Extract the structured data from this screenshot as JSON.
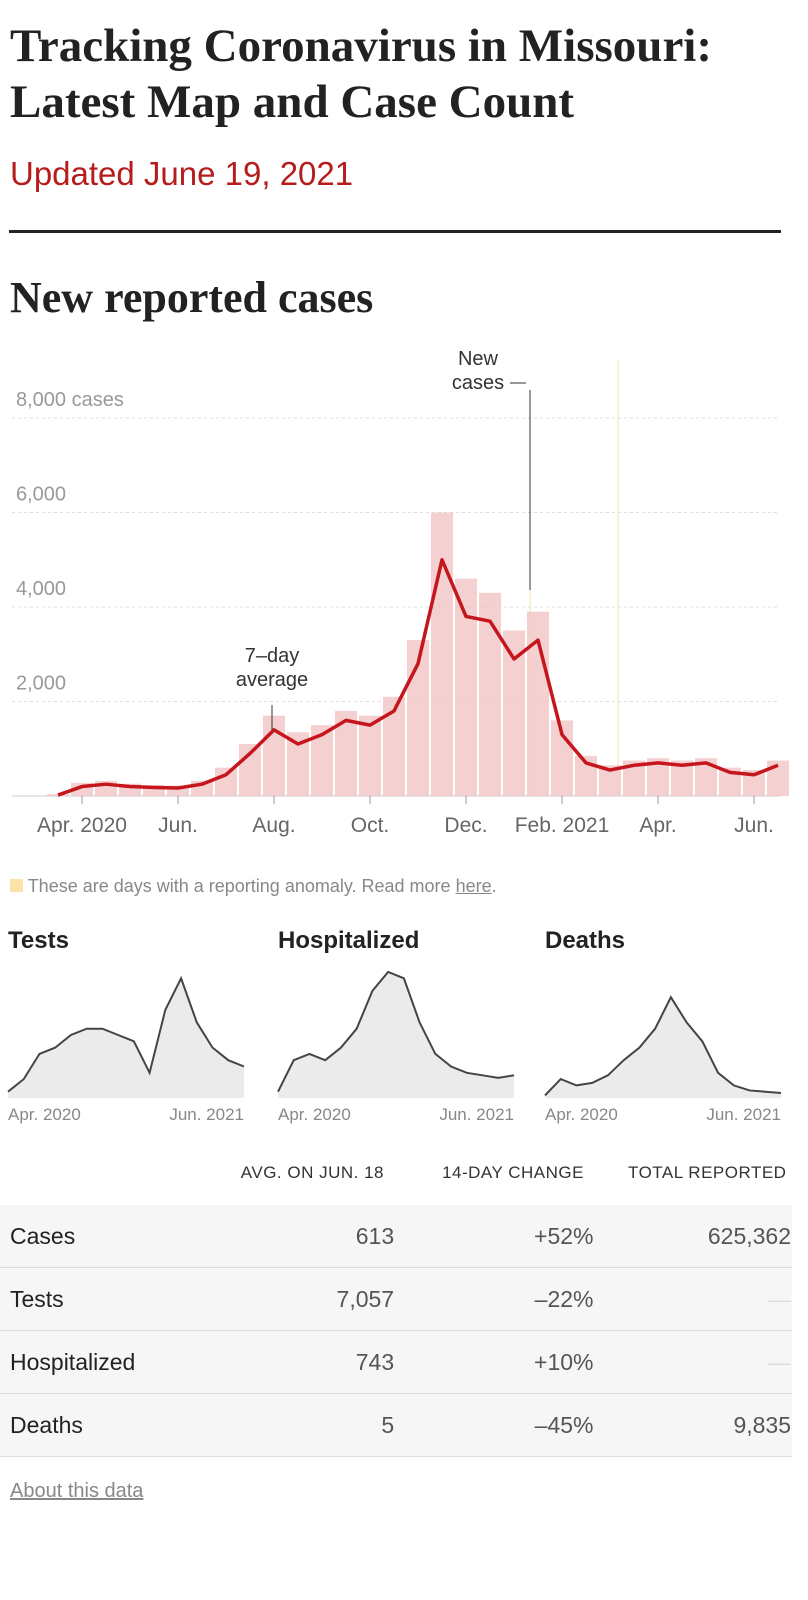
{
  "header": {
    "title_line1": "Tracking Coronavirus in Missouri:",
    "title_line2": "Latest Map and Case Count",
    "updated": "Updated June 19, 2021",
    "section": "New reported cases"
  },
  "chart_data": [
    {
      "type": "bar-line",
      "categories": [
        null,
        "Apr. 2020",
        null,
        null,
        null,
        "Jun.",
        null,
        null,
        null,
        "Aug.",
        null,
        null,
        null,
        "Oct.",
        null,
        null,
        null,
        "Dec.",
        null,
        null,
        null,
        "Feb. 2021",
        null,
        null,
        null,
        "Apr.",
        null,
        null,
        null,
        "Jun.",
        null
      ],
      "series": [
        {
          "name": "New cases",
          "mark": "bar",
          "color": "#f3c4c4",
          "values": [
            40,
            280,
            320,
            260,
            230,
            220,
            320,
            600,
            1100,
            1700,
            1350,
            1500,
            1800,
            1700,
            2100,
            3300,
            6000,
            4600,
            4300,
            3500,
            3900,
            1600,
            850,
            650,
            750,
            800,
            750,
            800,
            600,
            550,
            750
          ]
        },
        {
          "name": "7–day average",
          "mark": "line",
          "color": "#c4161c",
          "values": [
            20,
            200,
            250,
            200,
            180,
            170,
            250,
            450,
            900,
            1400,
            1100,
            1300,
            1600,
            1500,
            1800,
            2800,
            5000,
            3800,
            3700,
            2900,
            3300,
            1300,
            700,
            550,
            650,
            700,
            650,
            700,
            500,
            450,
            650
          ]
        }
      ],
      "ylim": [
        0,
        8000
      ],
      "yticks": [
        {
          "value": 2000,
          "label": "2,000"
        },
        {
          "value": 4000,
          "label": "4,000"
        },
        {
          "value": 6000,
          "label": "6,000"
        },
        {
          "value": 8000,
          "label": "8,000 cases"
        }
      ],
      "grid": true
    },
    {
      "type": "area",
      "title": "Tests",
      "color": "#444",
      "categories": [
        "Apr. 2020",
        null,
        null,
        null,
        null,
        null,
        null,
        null,
        null,
        null,
        null,
        null,
        null,
        null,
        null,
        "Jun. 2021"
      ],
      "values": [
        5,
        15,
        35,
        40,
        50,
        55,
        55,
        50,
        45,
        20,
        70,
        95,
        60,
        40,
        30,
        25
      ],
      "ylim": [
        0,
        100
      ]
    },
    {
      "type": "area",
      "title": "Hospitalized",
      "color": "#444",
      "categories": [
        "Apr. 2020",
        null,
        null,
        null,
        null,
        null,
        null,
        null,
        null,
        null,
        null,
        null,
        null,
        null,
        null,
        "Jun. 2021"
      ],
      "values": [
        5,
        30,
        35,
        30,
        40,
        55,
        85,
        100,
        95,
        60,
        35,
        25,
        20,
        18,
        16,
        18
      ],
      "ylim": [
        0,
        100
      ]
    },
    {
      "type": "area",
      "title": "Deaths",
      "color": "#444",
      "categories": [
        "Apr. 2020",
        null,
        null,
        null,
        null,
        null,
        null,
        null,
        null,
        null,
        null,
        null,
        null,
        null,
        null,
        "Jun. 2021"
      ],
      "values": [
        2,
        15,
        10,
        12,
        18,
        30,
        40,
        55,
        80,
        60,
        45,
        20,
        10,
        6,
        5,
        4
      ],
      "ylim": [
        0,
        100
      ]
    }
  ],
  "note": {
    "text": "These are days with a reporting anomaly. Read more ",
    "link": "here",
    "end": "."
  },
  "table": {
    "columns": [
      "AVG. ON JUN. 18",
      "14-DAY CHANGE",
      "TOTAL REPORTED"
    ],
    "rows": [
      [
        "Cases",
        "613",
        "+52%",
        "625,362"
      ],
      [
        "Tests",
        "7,057",
        "–22%",
        "—"
      ],
      [
        "Hospitalized",
        "743",
        "+10%",
        "—"
      ],
      [
        "Deaths",
        "5",
        "–45%",
        "9,835"
      ]
    ]
  },
  "footer": {
    "link": "About this data"
  }
}
